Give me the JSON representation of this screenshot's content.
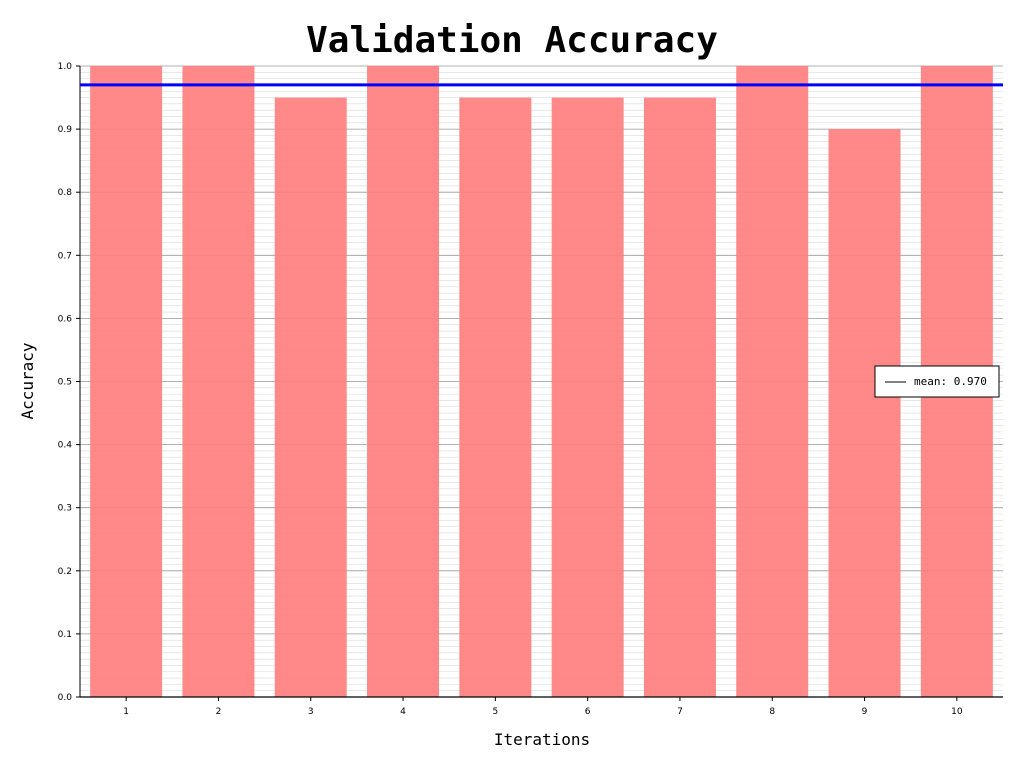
{
  "chart_data": {
    "type": "bar",
    "title": "Validation Accuracy",
    "xlabel": "Iterations",
    "ylabel": "Accuracy",
    "categories": [
      "1",
      "2",
      "3",
      "4",
      "5",
      "6",
      "7",
      "8",
      "9",
      "10"
    ],
    "values": [
      1.0,
      1.0,
      0.95,
      1.0,
      0.95,
      0.95,
      0.95,
      1.0,
      0.9,
      1.0
    ],
    "ylim": [
      0.0,
      1.0
    ],
    "yticks": [
      "0.0",
      "0.1",
      "0.2",
      "0.3",
      "0.4",
      "0.5",
      "0.6",
      "0.7",
      "0.8",
      "0.9",
      "1.0"
    ],
    "grid": true,
    "minor_grid": true,
    "mean_line": {
      "value": 0.97,
      "label": "mean: 0.970",
      "color": "#0000ff"
    },
    "bar_color": "#ff7f7f",
    "legend_position": "right"
  }
}
